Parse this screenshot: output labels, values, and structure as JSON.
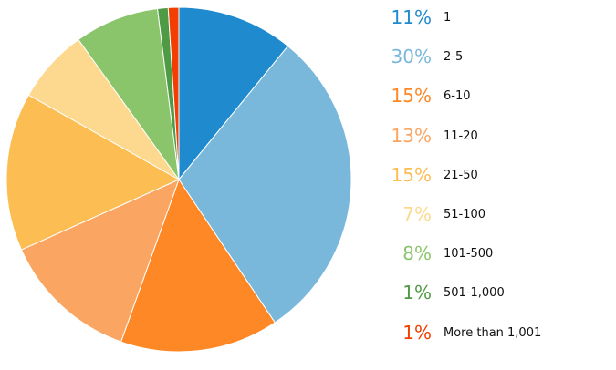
{
  "chart_data": {
    "type": "pie",
    "title": "",
    "slices": [
      {
        "label": "1",
        "percent_label": "11%",
        "value": 11,
        "color": "#1f8acd"
      },
      {
        "label": "2-5",
        "percent_label": "30%",
        "value": 30,
        "color": "#7ab8db"
      },
      {
        "label": "6-10",
        "percent_label": "15%",
        "value": 15,
        "color": "#fd8825"
      },
      {
        "label": "11-20",
        "percent_label": "13%",
        "value": 13,
        "color": "#faa662"
      },
      {
        "label": "21-50",
        "percent_label": "15%",
        "value": 15,
        "color": "#fcbd53"
      },
      {
        "label": "51-100",
        "percent_label": "7%",
        "value": 7,
        "color": "#fcd98f"
      },
      {
        "label": "101-500",
        "percent_label": "8%",
        "value": 8,
        "color": "#8bc56b"
      },
      {
        "label": "501-1,000",
        "percent_label": "1%",
        "value": 1,
        "color": "#4f9a45"
      },
      {
        "label": "More than 1,001",
        "percent_label": "1%",
        "value": 1,
        "color": "#f23e00"
      }
    ],
    "legend_position": "right"
  }
}
